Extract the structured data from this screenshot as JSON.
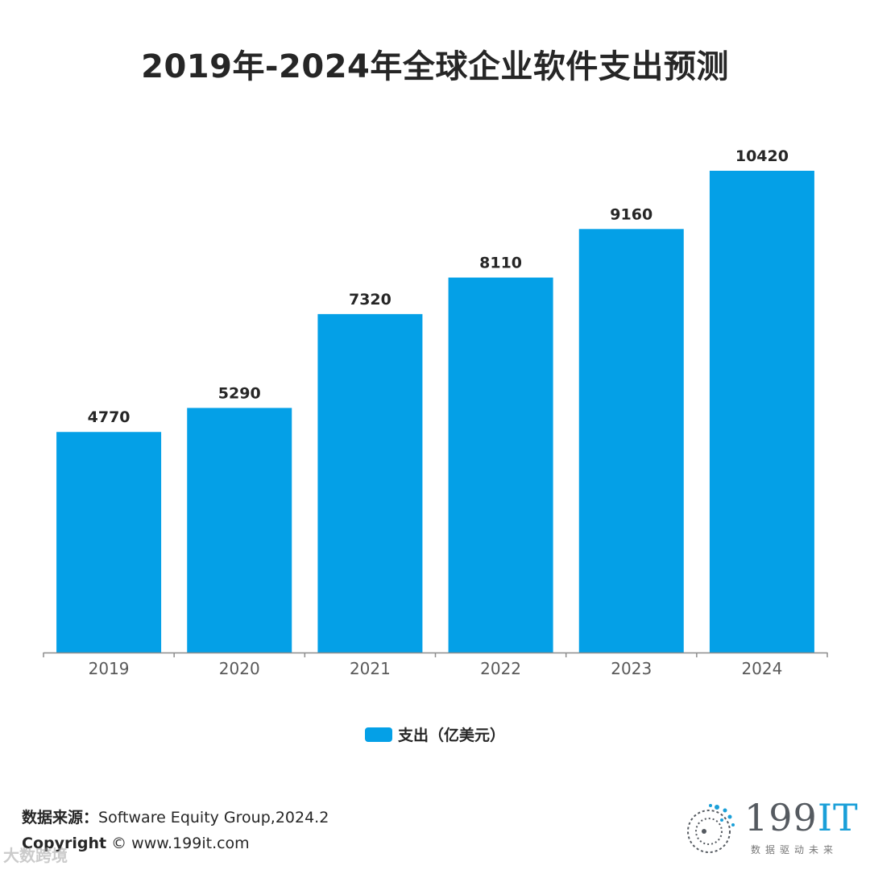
{
  "chart_data": {
    "type": "bar",
    "title": "2019年-2024年全球企业软件支出预测",
    "categories": [
      "2019",
      "2020",
      "2021",
      "2022",
      "2023",
      "2024"
    ],
    "series": [
      {
        "name": "支出（亿美元）",
        "values": [
          4770,
          5290,
          7320,
          8110,
          9160,
          10420
        ],
        "color": "#04a0e7"
      }
    ],
    "data_labels": [
      "4770",
      "5290",
      "7320",
      "8110",
      "9160",
      "10420"
    ],
    "ylim": [
      0,
      11500
    ],
    "xlabel": "",
    "ylabel": "",
    "grid": false,
    "legend_position": "bottom-center"
  },
  "footer": {
    "source_label": "数据来源：",
    "source_text": "Software Equity Group,2024.2",
    "copyright_label": "Copyright",
    "copyright_text": "© www.199it.com"
  },
  "watermark": "大数跨境",
  "logo": {
    "main": "199",
    "accent": "IT",
    "tagline": "数据驱动未来"
  }
}
